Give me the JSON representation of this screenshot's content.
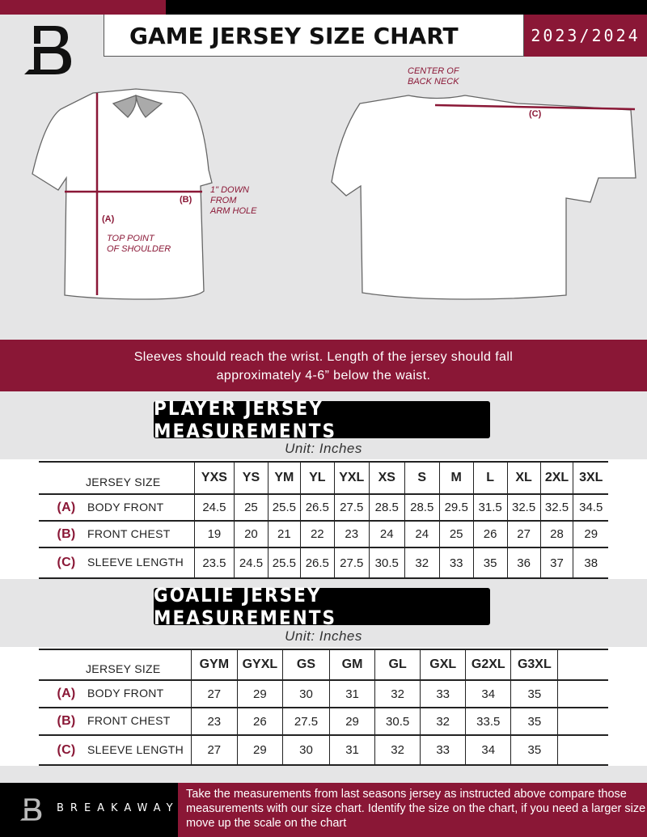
{
  "header": {
    "title": "GAME JERSEY SIZE CHART",
    "season": "2023/2024",
    "logo": "B"
  },
  "diagram": {
    "center_back_neck": "CENTER OF\nBACK NECK",
    "label_a": "(A)",
    "label_b": "(B)",
    "label_c": "(C)",
    "one_inch_down": "1\" DOWN\nFROM\nARM HOLE",
    "top_point": "TOP POINT\nOF SHOULDER"
  },
  "instruction": "Sleeves should reach the wrist. Length of the jersey should fall\napproximately 4-6” below the waist.",
  "player": {
    "title": "PLAYER JERSEY MEASUREMENTS",
    "unit": "Unit: Inches",
    "size_label": "JERSEY SIZE",
    "sizes": [
      "YXS",
      "YS",
      "YM",
      "YL",
      "YXL",
      "XS",
      "S",
      "M",
      "L",
      "XL",
      "2XL",
      "3XL"
    ],
    "rows": [
      {
        "letter": "(A)",
        "name": "BODY FRONT",
        "values": [
          "24.5",
          "25",
          "25.5",
          "26.5",
          "27.5",
          "28.5",
          "28.5",
          "29.5",
          "31.5",
          "32.5",
          "32.5",
          "34.5"
        ]
      },
      {
        "letter": "(B)",
        "name": "FRONT CHEST",
        "values": [
          "19",
          "20",
          "21",
          "22",
          "23",
          "24",
          "24",
          "25",
          "26",
          "27",
          "28",
          "29"
        ]
      },
      {
        "letter": "(C)",
        "name": "SLEEVE LENGTH",
        "values": [
          "23.5",
          "24.5",
          "25.5",
          "26.5",
          "27.5",
          "30.5",
          "32",
          "33",
          "35",
          "36",
          "37",
          "38"
        ]
      }
    ]
  },
  "goalie": {
    "title": "GOALIE JERSEY MEASUREMENTS",
    "unit": "Unit: Inches",
    "size_label": "JERSEY SIZE",
    "sizes": [
      "GYM",
      "GYXL",
      "GS",
      "GM",
      "GL",
      "GXL",
      "G2XL",
      "G3XL",
      ""
    ],
    "rows": [
      {
        "letter": "(A)",
        "name": "BODY FRONT",
        "values": [
          "27",
          "29",
          "30",
          "31",
          "32",
          "33",
          "34",
          "35",
          ""
        ]
      },
      {
        "letter": "(B)",
        "name": "FRONT CHEST",
        "values": [
          "23",
          "26",
          "27.5",
          "29",
          "30.5",
          "32",
          "33.5",
          "35",
          ""
        ]
      },
      {
        "letter": "(C)",
        "name": "SLEEVE LENGTH",
        "values": [
          "27",
          "29",
          "30",
          "31",
          "32",
          "33",
          "34",
          "35",
          ""
        ]
      }
    ]
  },
  "footer": {
    "brand": "BREAKAWAY",
    "text": "Take the measurements from last seasons jersey as instructed above compare those measurements  with our size chart. Identify the size on the chart, if you need a larger size move up the scale on the chart"
  },
  "colors": {
    "accent": "#8a1736",
    "dark": "#000000",
    "background": "#e5e5e6"
  }
}
